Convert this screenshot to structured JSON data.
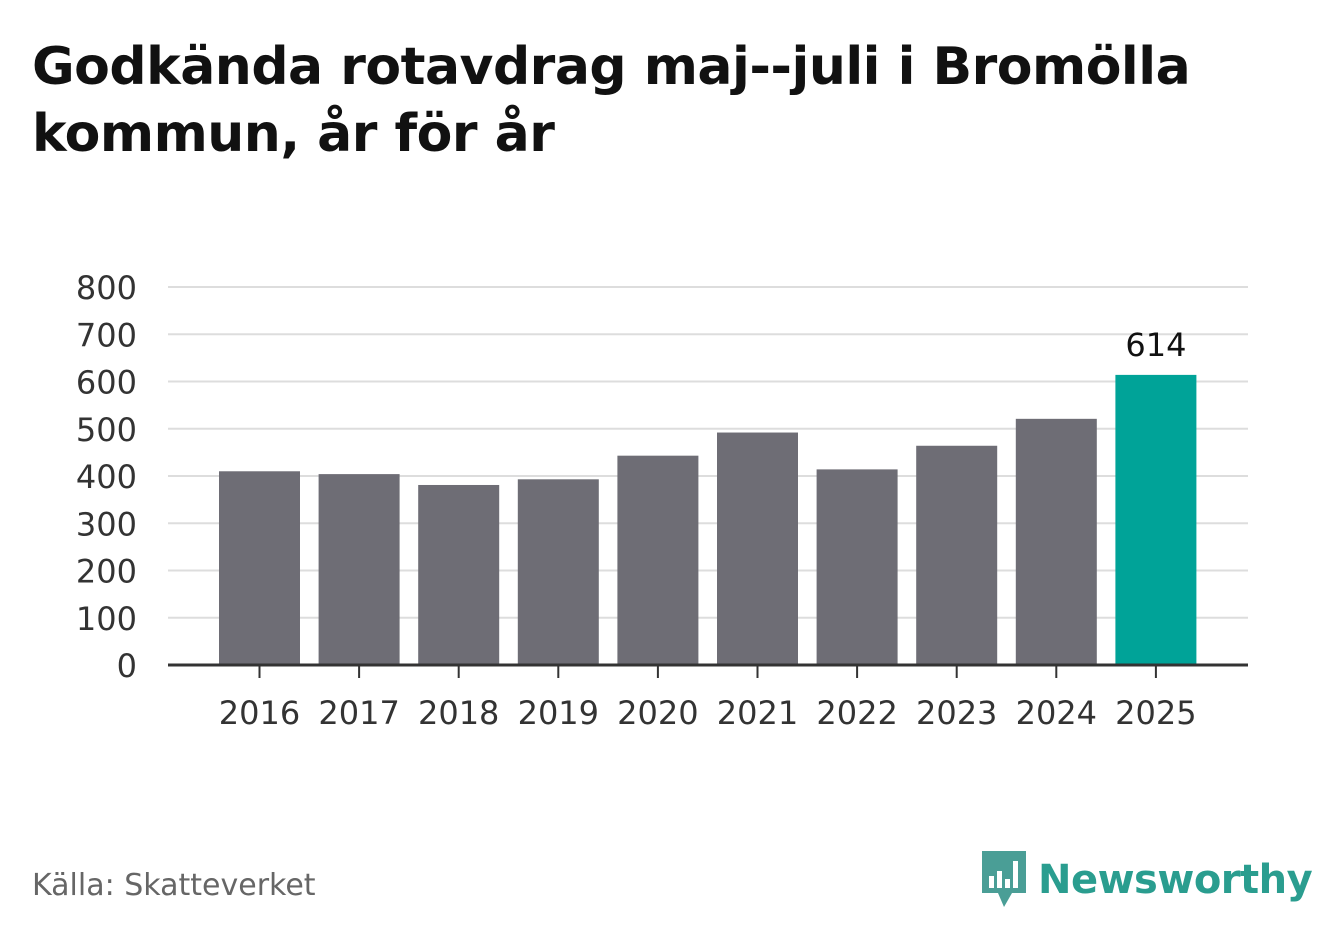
{
  "title": "Godkända rotavdrag maj--juli i Bromölla kommun, år för år",
  "source": "Källa: Skatteverket",
  "brand": "Newsworthy",
  "colors": {
    "bar": "#6e6d75",
    "highlight": "#00a398",
    "grid": "#dddddd",
    "axis": "#333333",
    "brand": "#2a9d8f"
  },
  "chart_data": {
    "type": "bar",
    "title": "Godkända rotavdrag maj--juli i Bromölla kommun, år för år",
    "xlabel": "",
    "ylabel": "",
    "categories": [
      "2016",
      "2017",
      "2018",
      "2019",
      "2020",
      "2021",
      "2022",
      "2023",
      "2024",
      "2025"
    ],
    "values": [
      410,
      404,
      381,
      393,
      443,
      492,
      414,
      464,
      521,
      614
    ],
    "ylim": [
      0,
      800
    ],
    "yticks": [
      0,
      100,
      200,
      300,
      400,
      500,
      600,
      700,
      800
    ],
    "highlight_index": 9,
    "data_labels": [
      {
        "index": 9,
        "text": "614"
      }
    ],
    "grid": true,
    "legend": "none"
  }
}
